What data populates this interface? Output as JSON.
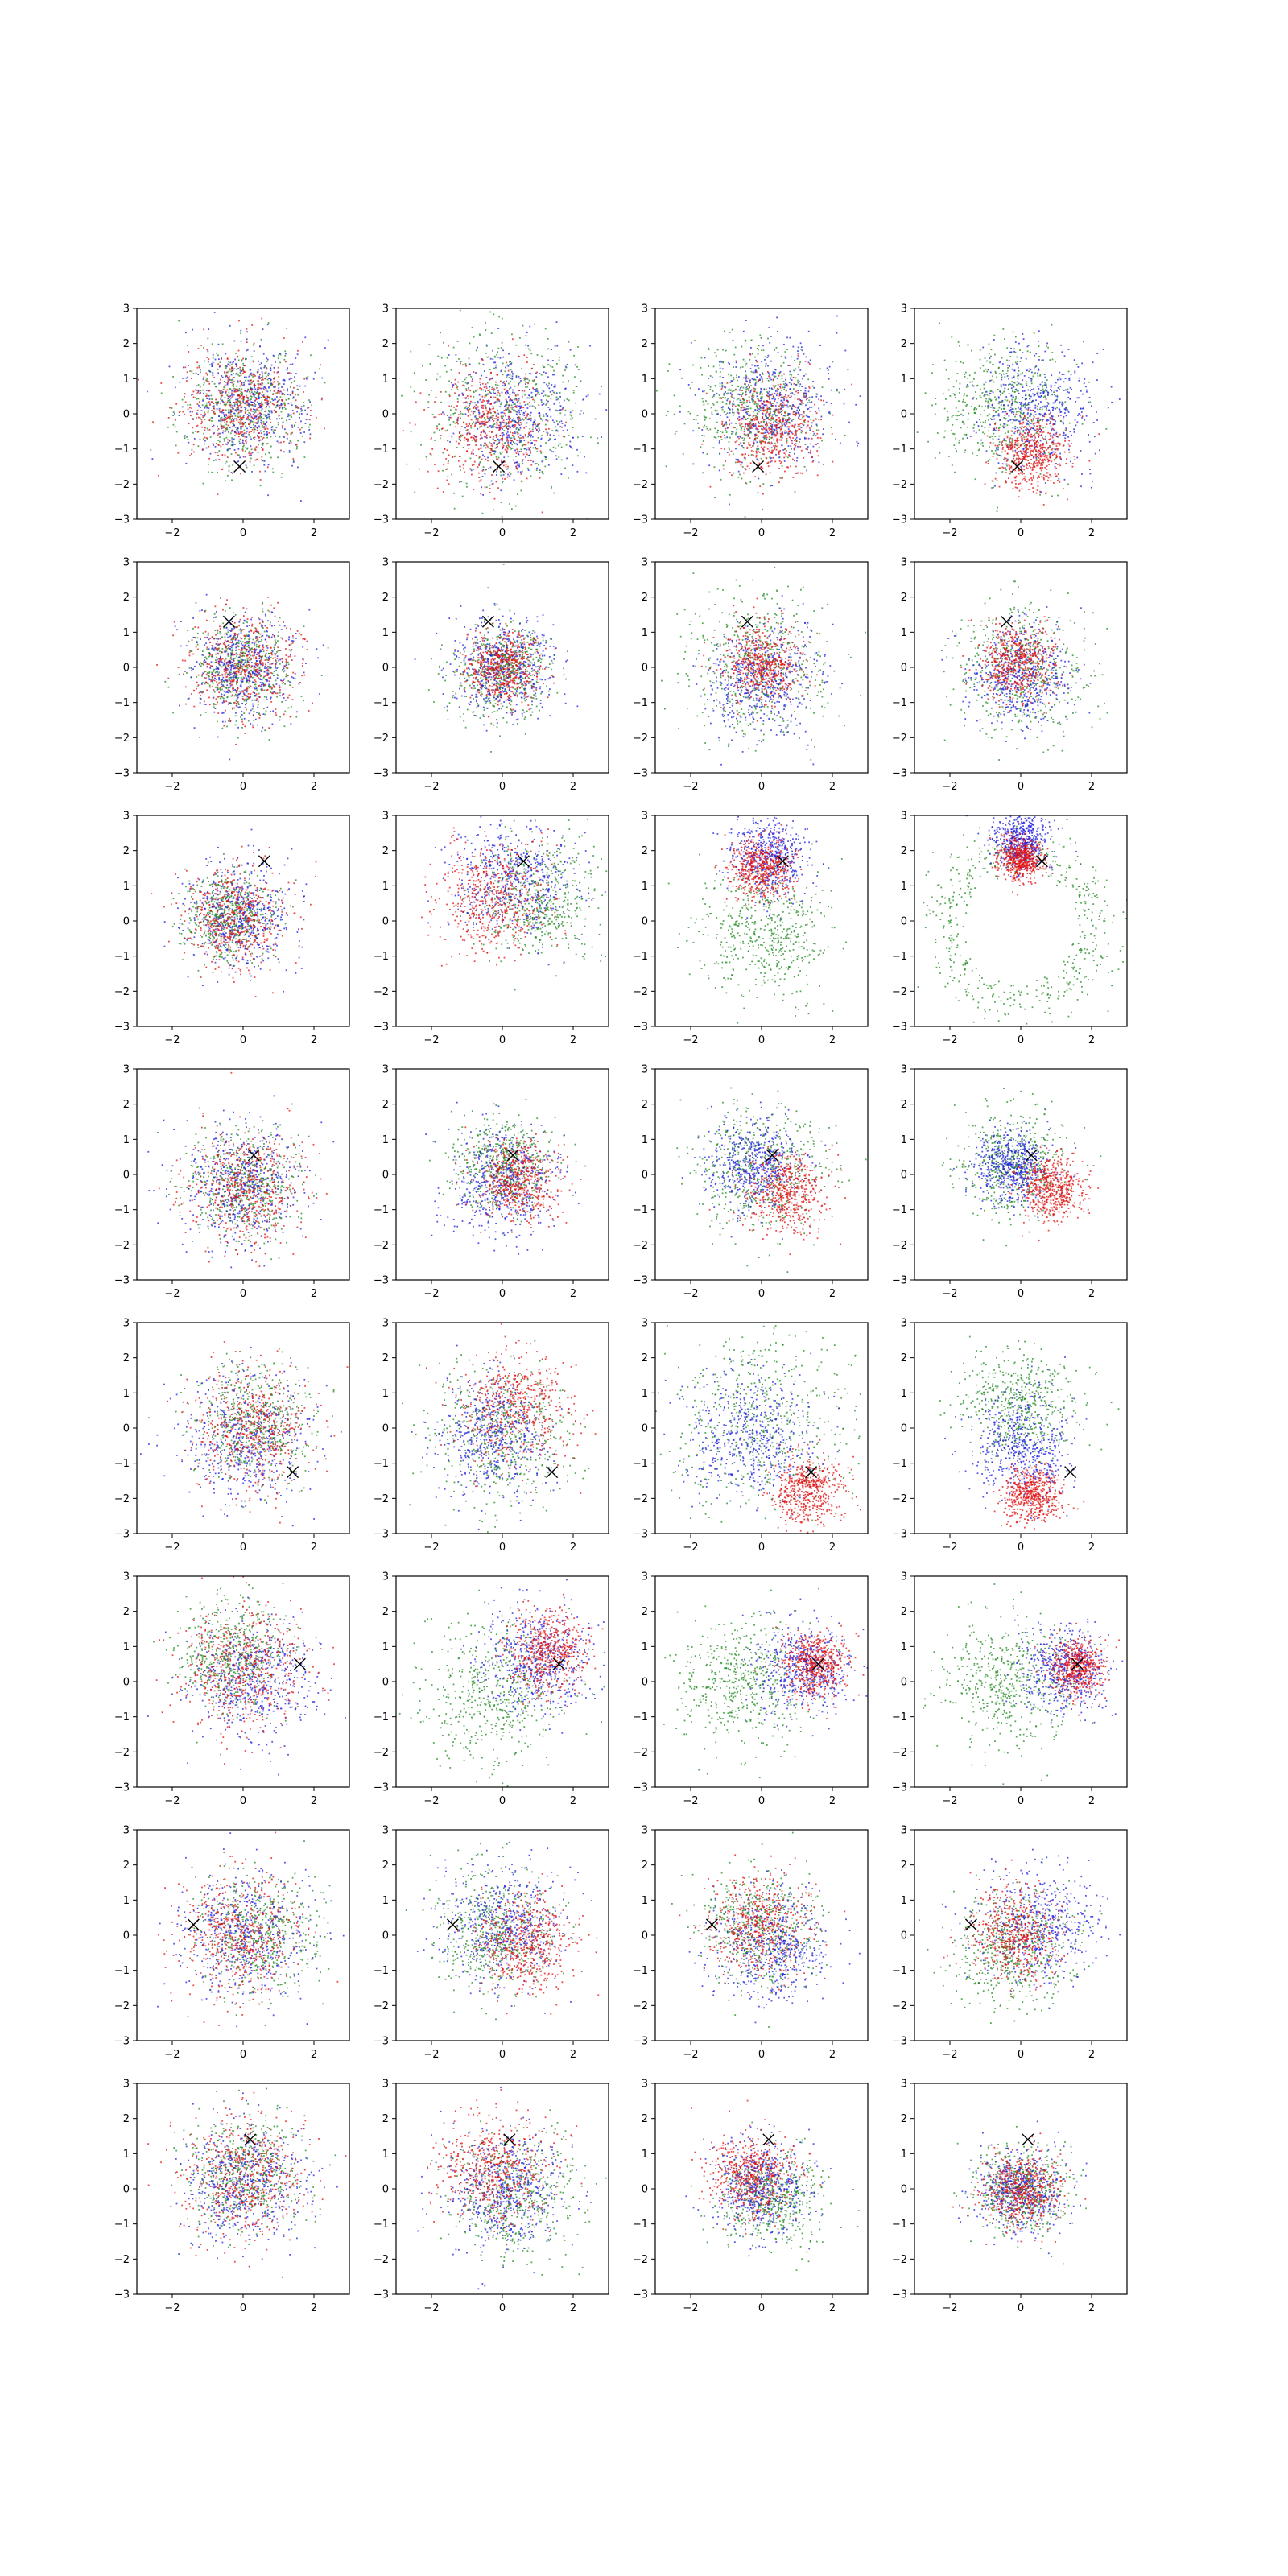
{
  "figure": {
    "layout": "8 rows x 4 columns grid of scatter plots",
    "background": "#ffffff"
  },
  "chart_data": {
    "type": "scatter",
    "rows": 8,
    "cols": 4,
    "xlim": [
      -3,
      3
    ],
    "ylim": [
      -3,
      3
    ],
    "xticks": [
      -2,
      0,
      2
    ],
    "yticks": [
      -3,
      -2,
      -1,
      0,
      1,
      2,
      3
    ],
    "xtick_labels": [
      "−2",
      "0",
      "2"
    ],
    "ytick_labels": [
      "−3",
      "−2",
      "−1",
      "0",
      "1",
      "2",
      "3"
    ],
    "grid": false,
    "legend": "none",
    "point_colors": {
      "green": "#228b22",
      "blue": "#1f1fe0",
      "red": "#e01010"
    },
    "marker": {
      "symbol": "x",
      "color": "#000000"
    },
    "points_per_color_per_panel": 520,
    "row_markers": [
      [
        -0.1,
        -1.5
      ],
      [
        -0.4,
        1.3
      ],
      [
        0.6,
        1.7
      ],
      [
        0.3,
        0.55
      ],
      [
        1.4,
        -1.25
      ],
      [
        1.6,
        0.5
      ],
      [
        -1.4,
        0.3
      ],
      [
        0.2,
        1.4
      ]
    ],
    "panels": [
      {
        "row": 0,
        "col": 0,
        "clusters": [
          {
            "color": "green",
            "cx": 0.0,
            "cy": 0.2,
            "sd": 0.85,
            "ring": false
          },
          {
            "color": "blue",
            "cx": 0.15,
            "cy": 0.3,
            "sd": 0.85,
            "ring": false
          },
          {
            "color": "red",
            "cx": -0.1,
            "cy": 0.2,
            "sd": 0.85,
            "ring": false
          }
        ]
      },
      {
        "row": 0,
        "col": 1,
        "clusters": [
          {
            "color": "green",
            "cx": 0.0,
            "cy": 0.0,
            "sd": 1.25,
            "ring": false
          },
          {
            "color": "blue",
            "cx": 0.4,
            "cy": 0.0,
            "sd": 0.9,
            "ring": false
          },
          {
            "color": "red",
            "cx": -0.3,
            "cy": -0.3,
            "sd": 0.8,
            "ring": false
          }
        ]
      },
      {
        "row": 0,
        "col": 2,
        "clusters": [
          {
            "color": "green",
            "cx": -0.3,
            "cy": 0.2,
            "sd": 0.9,
            "ring": false
          },
          {
            "color": "blue",
            "cx": 0.3,
            "cy": 0.2,
            "sd": 0.9,
            "ring": false
          },
          {
            "color": "red",
            "cx": 0.3,
            "cy": -0.4,
            "sd": 0.7,
            "ring": false
          }
        ]
      },
      {
        "row": 0,
        "col": 3,
        "clusters": [
          {
            "color": "green",
            "cx": -0.5,
            "cy": 0.2,
            "sd": 0.9,
            "ring": false
          },
          {
            "color": "blue",
            "cx": 0.5,
            "cy": 0.2,
            "sd": 0.85,
            "ring": false
          },
          {
            "color": "red",
            "cx": 0.3,
            "cy": -1.1,
            "sd": 0.5,
            "ring": false
          }
        ]
      },
      {
        "row": 1,
        "col": 0,
        "clusters": [
          {
            "color": "green",
            "cx": 0.0,
            "cy": 0.0,
            "sd": 0.7,
            "ring": false
          },
          {
            "color": "blue",
            "cx": 0.0,
            "cy": 0.0,
            "sd": 0.75,
            "ring": false
          },
          {
            "color": "red",
            "cx": 0.0,
            "cy": 0.1,
            "sd": 0.75,
            "ring": false
          }
        ]
      },
      {
        "row": 1,
        "col": 1,
        "clusters": [
          {
            "color": "green",
            "cx": 0.0,
            "cy": -0.1,
            "sd": 0.7,
            "ring": false
          },
          {
            "color": "blue",
            "cx": 0.0,
            "cy": 0.0,
            "sd": 0.7,
            "ring": false
          },
          {
            "color": "red",
            "cx": 0.0,
            "cy": 0.0,
            "sd": 0.5,
            "ring": false
          }
        ]
      },
      {
        "row": 1,
        "col": 2,
        "clusters": [
          {
            "color": "green",
            "cx": 0.0,
            "cy": 0.0,
            "sd": 1.0,
            "ring": false
          },
          {
            "color": "blue",
            "cx": 0.0,
            "cy": -0.3,
            "sd": 0.75,
            "ring": false
          },
          {
            "color": "red",
            "cx": 0.0,
            "cy": 0.1,
            "sd": 0.55,
            "ring": false
          }
        ]
      },
      {
        "row": 1,
        "col": 3,
        "clusters": [
          {
            "color": "green",
            "cx": 0.0,
            "cy": 0.0,
            "sd": 0.9,
            "ring": false
          },
          {
            "color": "blue",
            "cx": 0.0,
            "cy": -0.2,
            "sd": 0.7,
            "ring": false
          },
          {
            "color": "red",
            "cx": -0.1,
            "cy": 0.2,
            "sd": 0.55,
            "ring": false
          }
        ]
      },
      {
        "row": 2,
        "col": 0,
        "clusters": [
          {
            "color": "green",
            "cx": -0.4,
            "cy": 0.1,
            "sd": 0.6,
            "ring": false
          },
          {
            "color": "blue",
            "cx": -0.1,
            "cy": 0.1,
            "sd": 0.75,
            "ring": false
          },
          {
            "color": "red",
            "cx": -0.2,
            "cy": 0.1,
            "sd": 0.7,
            "ring": false
          }
        ]
      },
      {
        "row": 2,
        "col": 1,
        "clusters": [
          {
            "color": "green",
            "cx": 1.1,
            "cy": 0.7,
            "sd": 0.85,
            "ring": false
          },
          {
            "color": "blue",
            "cx": 0.3,
            "cy": 1.2,
            "sd": 0.85,
            "ring": false
          },
          {
            "color": "red",
            "cx": -0.3,
            "cy": 0.6,
            "sd": 0.75,
            "ring": false
          }
        ]
      },
      {
        "row": 2,
        "col": 2,
        "clusters": [
          {
            "color": "green",
            "cx": 0.0,
            "cy": -0.3,
            "sd": 0.9,
            "ring": false
          },
          {
            "color": "blue",
            "cx": 0.2,
            "cy": 1.8,
            "sd": 0.55,
            "ring": false
          },
          {
            "color": "red",
            "cx": 0.0,
            "cy": 1.5,
            "sd": 0.45,
            "ring": false
          }
        ]
      },
      {
        "row": 2,
        "col": 3,
        "clusters": [
          {
            "color": "green",
            "cx": 0.0,
            "cy": 0.0,
            "sd": 2.1,
            "ring": true
          },
          {
            "color": "blue",
            "cx": 0.0,
            "cy": 2.3,
            "sd": 0.4,
            "ring": false
          },
          {
            "color": "red",
            "cx": 0.0,
            "cy": 1.75,
            "sd": 0.3,
            "ring": false
          }
        ]
      },
      {
        "row": 3,
        "col": 0,
        "clusters": [
          {
            "color": "green",
            "cx": 0.0,
            "cy": -0.3,
            "sd": 0.8,
            "ring": false
          },
          {
            "color": "blue",
            "cx": 0.0,
            "cy": -0.3,
            "sd": 0.85,
            "ring": false
          },
          {
            "color": "red",
            "cx": 0.1,
            "cy": -0.4,
            "sd": 0.8,
            "ring": false
          }
        ]
      },
      {
        "row": 3,
        "col": 1,
        "clusters": [
          {
            "color": "green",
            "cx": 0.0,
            "cy": 0.3,
            "sd": 0.65,
            "ring": false
          },
          {
            "color": "blue",
            "cx": 0.0,
            "cy": -0.2,
            "sd": 0.75,
            "ring": false
          },
          {
            "color": "red",
            "cx": 0.4,
            "cy": -0.2,
            "sd": 0.6,
            "ring": false
          }
        ]
      },
      {
        "row": 3,
        "col": 2,
        "clusters": [
          {
            "color": "green",
            "cx": 0.0,
            "cy": 0.2,
            "sd": 0.9,
            "ring": false
          },
          {
            "color": "blue",
            "cx": -0.2,
            "cy": 0.3,
            "sd": 0.65,
            "ring": false
          },
          {
            "color": "red",
            "cx": 0.7,
            "cy": -0.5,
            "sd": 0.55,
            "ring": false
          }
        ]
      },
      {
        "row": 3,
        "col": 3,
        "clusters": [
          {
            "color": "green",
            "cx": -0.2,
            "cy": 0.3,
            "sd": 0.75,
            "ring": false
          },
          {
            "color": "blue",
            "cx": -0.3,
            "cy": 0.2,
            "sd": 0.5,
            "ring": false
          },
          {
            "color": "red",
            "cx": 0.9,
            "cy": -0.4,
            "sd": 0.45,
            "ring": false
          }
        ]
      },
      {
        "row": 4,
        "col": 0,
        "clusters": [
          {
            "color": "green",
            "cx": 0.3,
            "cy": 0.2,
            "sd": 0.85,
            "ring": false
          },
          {
            "color": "blue",
            "cx": 0.0,
            "cy": -0.3,
            "sd": 0.9,
            "ring": false
          },
          {
            "color": "red",
            "cx": 0.3,
            "cy": 0.0,
            "sd": 0.85,
            "ring": false
          }
        ]
      },
      {
        "row": 4,
        "col": 1,
        "clusters": [
          {
            "color": "green",
            "cx": 0.0,
            "cy": -0.2,
            "sd": 1.0,
            "ring": false
          },
          {
            "color": "blue",
            "cx": -0.2,
            "cy": -0.2,
            "sd": 0.8,
            "ring": false
          },
          {
            "color": "red",
            "cx": 0.4,
            "cy": 0.6,
            "sd": 0.8,
            "ring": false
          }
        ]
      },
      {
        "row": 4,
        "col": 2,
        "clusters": [
          {
            "color": "green",
            "cx": 0.0,
            "cy": 0.3,
            "sd": 1.35,
            "ring": false
          },
          {
            "color": "blue",
            "cx": -0.3,
            "cy": -0.2,
            "sd": 0.9,
            "ring": false
          },
          {
            "color": "red",
            "cx": 1.3,
            "cy": -1.8,
            "sd": 0.5,
            "ring": false
          }
        ]
      },
      {
        "row": 4,
        "col": 3,
        "clusters": [
          {
            "color": "green",
            "cx": 0.0,
            "cy": 0.6,
            "sd": 0.8,
            "ring": false
          },
          {
            "color": "blue",
            "cx": 0.0,
            "cy": -0.5,
            "sd": 0.75,
            "ring": false
          },
          {
            "color": "red",
            "cx": 0.3,
            "cy": -1.9,
            "sd": 0.4,
            "ring": false
          }
        ]
      },
      {
        "row": 5,
        "col": 0,
        "clusters": [
          {
            "color": "green",
            "cx": -0.3,
            "cy": 0.8,
            "sd": 0.8,
            "ring": false
          },
          {
            "color": "blue",
            "cx": 0.3,
            "cy": 0.0,
            "sd": 0.9,
            "ring": false
          },
          {
            "color": "red",
            "cx": 0.0,
            "cy": 0.3,
            "sd": 0.9,
            "ring": false
          }
        ]
      },
      {
        "row": 5,
        "col": 1,
        "clusters": [
          {
            "color": "green",
            "cx": -0.3,
            "cy": -0.4,
            "sd": 1.0,
            "ring": false
          },
          {
            "color": "blue",
            "cx": 1.0,
            "cy": 0.7,
            "sd": 0.75,
            "ring": false
          },
          {
            "color": "red",
            "cx": 1.3,
            "cy": 0.9,
            "sd": 0.55,
            "ring": false
          }
        ]
      },
      {
        "row": 5,
        "col": 2,
        "clusters": [
          {
            "color": "green",
            "cx": -0.5,
            "cy": 0.0,
            "sd": 0.9,
            "ring": false
          },
          {
            "color": "blue",
            "cx": 1.2,
            "cy": 0.4,
            "sd": 0.65,
            "ring": false
          },
          {
            "color": "red",
            "cx": 1.5,
            "cy": 0.5,
            "sd": 0.45,
            "ring": false
          }
        ]
      },
      {
        "row": 5,
        "col": 3,
        "clusters": [
          {
            "color": "green",
            "cx": -0.3,
            "cy": 0.0,
            "sd": 0.9,
            "ring": false
          },
          {
            "color": "blue",
            "cx": 1.3,
            "cy": 0.3,
            "sd": 0.6,
            "ring": false
          },
          {
            "color": "red",
            "cx": 1.6,
            "cy": 0.4,
            "sd": 0.4,
            "ring": false
          }
        ]
      },
      {
        "row": 6,
        "col": 0,
        "clusters": [
          {
            "color": "green",
            "cx": 0.5,
            "cy": 0.0,
            "sd": 0.85,
            "ring": false
          },
          {
            "color": "blue",
            "cx": 0.0,
            "cy": 0.0,
            "sd": 0.9,
            "ring": false
          },
          {
            "color": "red",
            "cx": -0.1,
            "cy": 0.0,
            "sd": 0.85,
            "ring": false
          }
        ]
      },
      {
        "row": 6,
        "col": 1,
        "clusters": [
          {
            "color": "green",
            "cx": -0.2,
            "cy": 0.1,
            "sd": 0.85,
            "ring": false
          },
          {
            "color": "blue",
            "cx": 0.0,
            "cy": 0.3,
            "sd": 0.85,
            "ring": false
          },
          {
            "color": "red",
            "cx": 0.7,
            "cy": -0.3,
            "sd": 0.7,
            "ring": false
          }
        ]
      },
      {
        "row": 6,
        "col": 2,
        "clusters": [
          {
            "color": "green",
            "cx": 0.0,
            "cy": 0.2,
            "sd": 0.8,
            "ring": false
          },
          {
            "color": "blue",
            "cx": 0.3,
            "cy": -0.4,
            "sd": 0.8,
            "ring": false
          },
          {
            "color": "red",
            "cx": -0.1,
            "cy": 0.3,
            "sd": 0.7,
            "ring": false
          }
        ]
      },
      {
        "row": 6,
        "col": 3,
        "clusters": [
          {
            "color": "green",
            "cx": -0.2,
            "cy": -0.4,
            "sd": 0.85,
            "ring": false
          },
          {
            "color": "blue",
            "cx": 0.6,
            "cy": 0.3,
            "sd": 0.8,
            "ring": false
          },
          {
            "color": "red",
            "cx": -0.2,
            "cy": 0.0,
            "sd": 0.65,
            "ring": false
          }
        ]
      },
      {
        "row": 7,
        "col": 0,
        "clusters": [
          {
            "color": "green",
            "cx": 0.0,
            "cy": 0.4,
            "sd": 0.8,
            "ring": false
          },
          {
            "color": "blue",
            "cx": 0.0,
            "cy": 0.2,
            "sd": 0.85,
            "ring": false
          },
          {
            "color": "red",
            "cx": 0.0,
            "cy": 0.3,
            "sd": 0.85,
            "ring": false
          }
        ]
      },
      {
        "row": 7,
        "col": 1,
        "clusters": [
          {
            "color": "green",
            "cx": 0.3,
            "cy": -0.2,
            "sd": 0.9,
            "ring": false
          },
          {
            "color": "blue",
            "cx": 0.0,
            "cy": 0.0,
            "sd": 0.85,
            "ring": false
          },
          {
            "color": "red",
            "cx": -0.2,
            "cy": 0.5,
            "sd": 0.8,
            "ring": false
          }
        ]
      },
      {
        "row": 7,
        "col": 2,
        "clusters": [
          {
            "color": "green",
            "cx": 0.3,
            "cy": -0.3,
            "sd": 0.7,
            "ring": false
          },
          {
            "color": "blue",
            "cx": 0.0,
            "cy": 0.0,
            "sd": 0.65,
            "ring": false
          },
          {
            "color": "red",
            "cx": -0.3,
            "cy": 0.4,
            "sd": 0.6,
            "ring": false
          }
        ]
      },
      {
        "row": 7,
        "col": 3,
        "clusters": [
          {
            "color": "green",
            "cx": 0.0,
            "cy": 0.0,
            "sd": 0.6,
            "ring": false
          },
          {
            "color": "blue",
            "cx": 0.0,
            "cy": 0.0,
            "sd": 0.6,
            "ring": false
          },
          {
            "color": "red",
            "cx": 0.0,
            "cy": -0.1,
            "sd": 0.55,
            "ring": false
          }
        ]
      }
    ]
  }
}
